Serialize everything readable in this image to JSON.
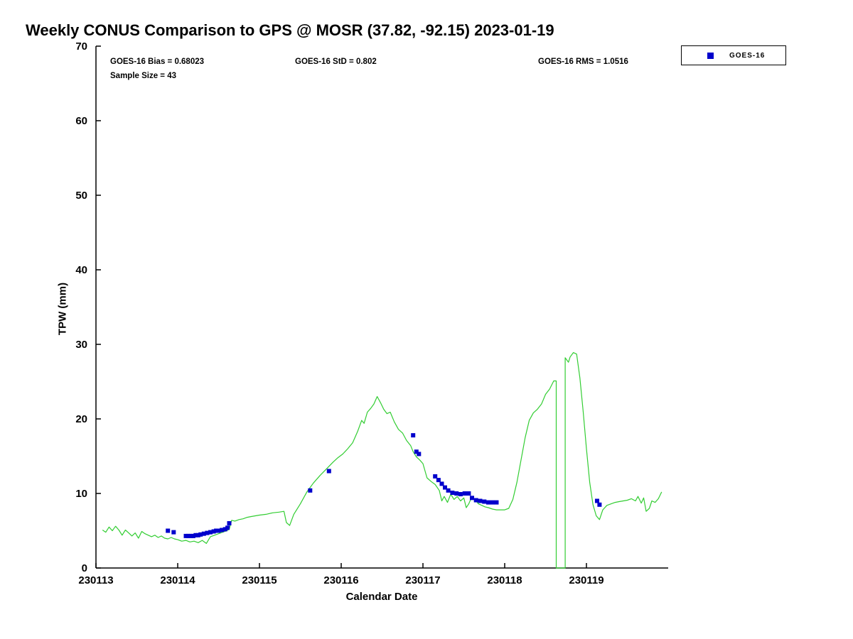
{
  "title": "Weekly CONUS Comparison to GPS @ MOSR (37.82, -92.15) 2023-01-19",
  "annotations": {
    "bias": "GOES-16 Bias = 0.68023",
    "std": "GOES-16 StD = 0.802",
    "rms": "GOES-16 RMS = 1.0516",
    "sample_size": "Sample Size = 43"
  },
  "legend": {
    "items": [
      {
        "label": "GOES-16",
        "marker": "square",
        "color": "#0000CC"
      }
    ]
  },
  "colors": {
    "gps_line": "#32CD32",
    "goes16_marker": "#0000CC",
    "axis": "#000000",
    "background": "#FFFFFF"
  },
  "chart_data": {
    "type": "line+scatter",
    "title": "Weekly CONUS Comparison to GPS @ MOSR (37.82, -92.15) 2023-01-19",
    "xlabel": "Calendar Date",
    "ylabel": "TPW (mm)",
    "xlim": [
      230113,
      230120
    ],
    "ylim": [
      0,
      70
    ],
    "xticks": [
      230113,
      230114,
      230115,
      230116,
      230117,
      230118,
      230119
    ],
    "yticks": [
      0,
      10,
      20,
      30,
      40,
      50,
      60,
      70
    ],
    "grid": false,
    "legend_position": "top-right",
    "series": [
      {
        "name": "GPS",
        "type": "line",
        "color": "#32CD32",
        "x": [
          230113.08,
          230113.12,
          230113.16,
          230113.2,
          230113.24,
          230113.28,
          230113.32,
          230113.36,
          230113.4,
          230113.44,
          230113.48,
          230113.52,
          230113.56,
          230113.6,
          230113.64,
          230113.68,
          230113.72,
          230113.76,
          230113.8,
          230113.84,
          230113.88,
          230113.92,
          230113.96,
          230114.0,
          230114.05,
          230114.1,
          230114.15,
          230114.2,
          230114.25,
          230114.3,
          230114.35,
          230114.4,
          230114.45,
          230114.5,
          230114.55,
          230114.6,
          230114.63,
          230114.66,
          230114.7,
          230114.75,
          230114.8,
          230114.85,
          230114.9,
          230114.95,
          230115.0,
          230115.08,
          230115.16,
          230115.24,
          230115.3,
          230115.33,
          230115.37,
          230115.42,
          230115.5,
          230115.58,
          230115.66,
          230115.74,
          230115.82,
          230115.9,
          230115.96,
          230116.02,
          230116.08,
          230116.14,
          230116.2,
          230116.25,
          230116.28,
          230116.32,
          230116.36,
          230116.4,
          230116.44,
          230116.48,
          230116.52,
          230116.56,
          230116.6,
          230116.65,
          230116.7,
          230116.75,
          230116.8,
          230116.85,
          230116.88,
          230116.92,
          230116.96,
          230117.0,
          230117.05,
          230117.1,
          230117.15,
          230117.2,
          230117.23,
          230117.26,
          230117.3,
          230117.34,
          230117.38,
          230117.42,
          230117.46,
          230117.5,
          230117.53,
          230117.56,
          230117.6,
          230117.64,
          230117.68,
          230117.72,
          230117.76,
          230117.8,
          230117.85,
          230117.9,
          230117.95,
          230118.0,
          230118.05,
          230118.1,
          230118.15,
          230118.2,
          230118.25,
          230118.3,
          230118.35,
          230118.4,
          230118.45,
          230118.5,
          230118.55,
          230118.6,
          230118.63,
          230118.63,
          230118.74,
          230118.74,
          230118.78,
          230118.8,
          230118.84,
          230118.88,
          230118.92,
          230118.96,
          230119.0,
          230119.04,
          230119.08,
          230119.12,
          230119.16,
          230119.2,
          230119.25,
          230119.3,
          230119.35,
          230119.4,
          230119.45,
          230119.5,
          230119.55,
          230119.6,
          230119.63,
          230119.67,
          230119.7,
          230119.73,
          230119.77,
          230119.8,
          230119.84,
          230119.88,
          230119.92
        ],
        "y": [
          5.1,
          4.8,
          5.5,
          5.0,
          5.6,
          5.1,
          4.4,
          5.1,
          4.7,
          4.3,
          4.7,
          4.0,
          4.9,
          4.6,
          4.4,
          4.2,
          4.4,
          4.1,
          4.3,
          4.0,
          3.9,
          4.1,
          3.9,
          3.8,
          3.6,
          3.7,
          3.5,
          3.6,
          3.4,
          3.7,
          3.3,
          4.2,
          4.4,
          4.6,
          4.8,
          5.0,
          5.2,
          6.4,
          6.3,
          6.5,
          6.6,
          6.8,
          6.9,
          7.0,
          7.1,
          7.2,
          7.4,
          7.5,
          7.6,
          6.1,
          5.7,
          7.2,
          8.6,
          10.2,
          11.4,
          12.4,
          13.3,
          14.2,
          14.8,
          15.3,
          16.0,
          16.8,
          18.3,
          19.8,
          19.4,
          20.9,
          21.4,
          22.0,
          23.0,
          22.2,
          21.3,
          20.7,
          20.9,
          19.6,
          18.6,
          18.1,
          17.1,
          16.4,
          15.6,
          14.9,
          14.5,
          14.0,
          12.1,
          11.6,
          11.2,
          10.4,
          9.0,
          9.6,
          8.8,
          9.9,
          9.2,
          9.6,
          9.0,
          9.4,
          8.1,
          8.6,
          9.6,
          9.1,
          8.6,
          8.4,
          8.2,
          8.1,
          7.9,
          7.8,
          7.8,
          7.8,
          8.0,
          9.2,
          11.5,
          14.5,
          17.5,
          19.8,
          20.8,
          21.3,
          22.0,
          23.3,
          24.0,
          25.1,
          25.1,
          0.0,
          0.0,
          28.2,
          27.6,
          28.3,
          28.9,
          28.7,
          25.5,
          21.0,
          16.0,
          11.5,
          8.5,
          7.0,
          6.5,
          7.8,
          8.4,
          8.6,
          8.8,
          8.9,
          9.0,
          9.1,
          9.3,
          9.0,
          9.6,
          8.7,
          9.4,
          7.6,
          8.0,
          9.0,
          8.8,
          9.3,
          10.2
        ]
      },
      {
        "name": "GOES-16",
        "type": "scatter",
        "marker": "square",
        "color": "#0000CC",
        "x": [
          230113.88,
          230113.95,
          230114.1,
          230114.13,
          230114.16,
          230114.19,
          230114.22,
          230114.25,
          230114.28,
          230114.32,
          230114.36,
          230114.4,
          230114.44,
          230114.47,
          230114.5,
          230114.54,
          230114.58,
          230114.61,
          230114.63,
          230115.62,
          230115.85,
          230116.88,
          230116.92,
          230116.95,
          230117.15,
          230117.19,
          230117.23,
          230117.27,
          230117.31,
          230117.36,
          230117.41,
          230117.46,
          230117.51,
          230117.56,
          230117.6,
          230117.65,
          230117.7,
          230117.75,
          230117.8,
          230117.85,
          230117.9,
          230119.13,
          230119.16
        ],
        "y": [
          5.0,
          4.8,
          4.3,
          4.3,
          4.3,
          4.3,
          4.4,
          4.4,
          4.5,
          4.6,
          4.7,
          4.8,
          4.9,
          5.0,
          5.0,
          5.1,
          5.2,
          5.4,
          6.0,
          10.4,
          13.0,
          17.8,
          15.6,
          15.3,
          12.3,
          11.8,
          11.3,
          10.8,
          10.4,
          10.1,
          10.0,
          9.9,
          10.0,
          10.0,
          9.4,
          9.1,
          9.0,
          8.9,
          8.8,
          8.8,
          8.8,
          9.0,
          8.5
        ]
      }
    ]
  }
}
